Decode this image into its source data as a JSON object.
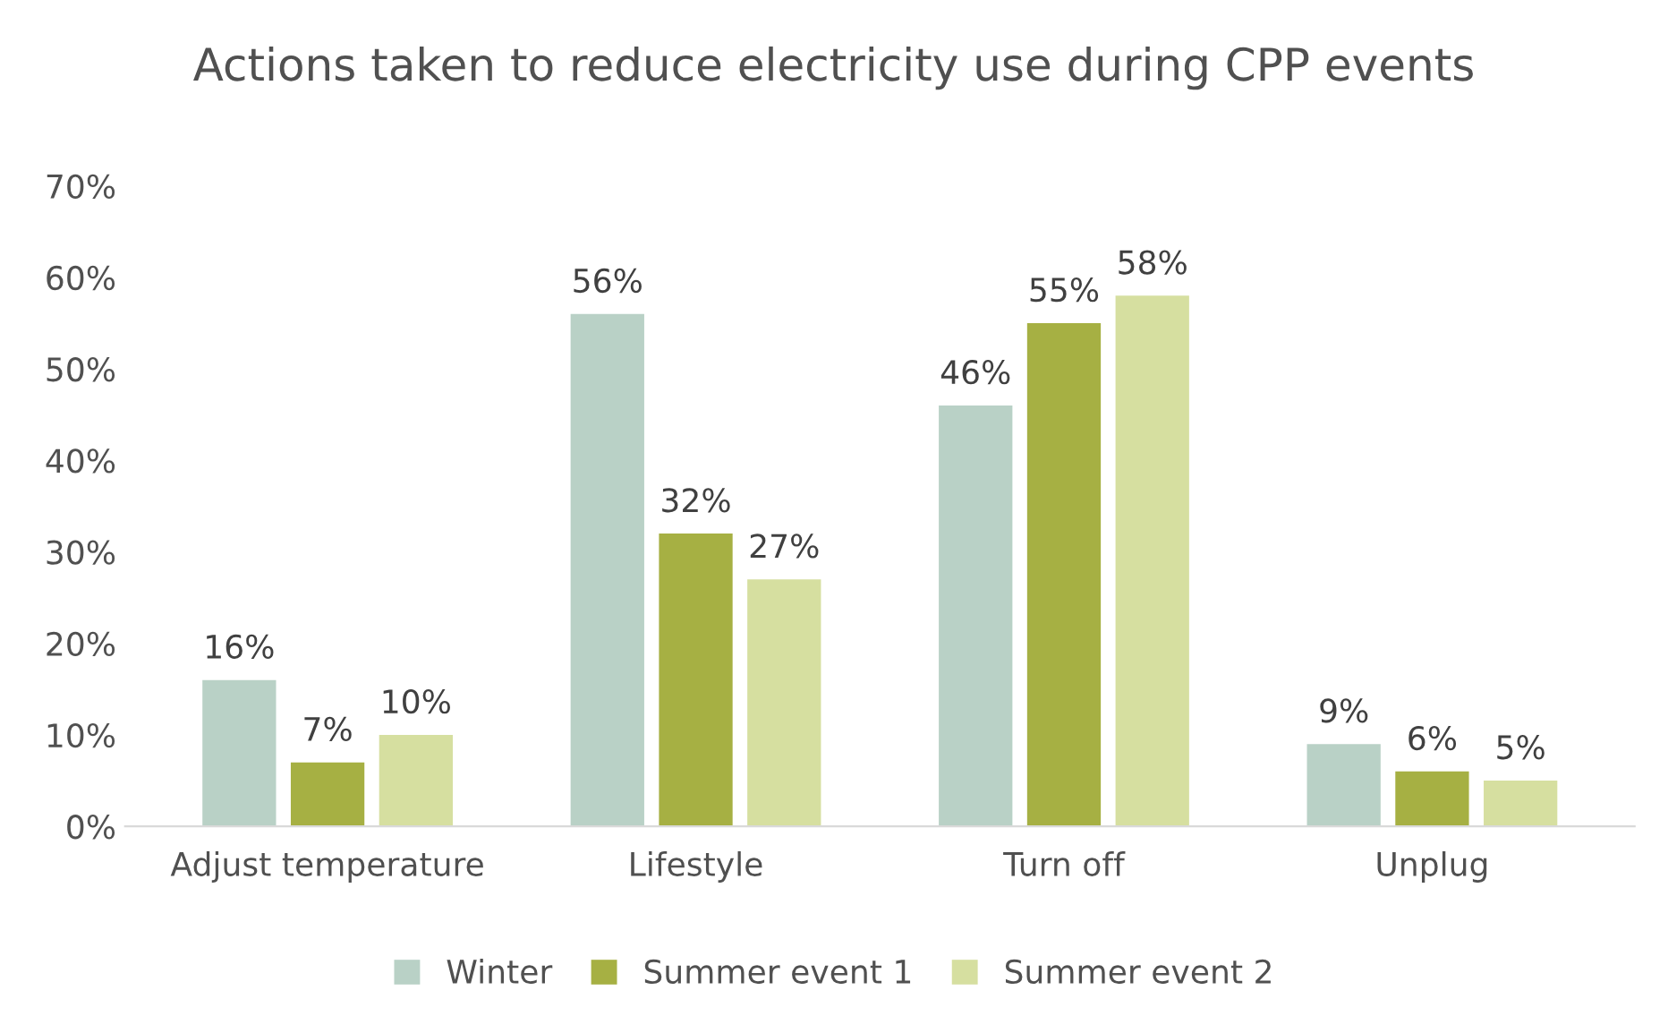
{
  "chart_data": {
    "type": "bar",
    "title": "Actions taken to reduce electricity use during CPP events",
    "categories": [
      "Adjust temperature",
      "Lifestyle",
      "Turn off",
      "Unplug"
    ],
    "series": [
      {
        "name": "Winter",
        "color": "#b9d1c6",
        "values": [
          16,
          56,
          46,
          9
        ],
        "value_labels": [
          "16%",
          "56%",
          "46%",
          "9%"
        ]
      },
      {
        "name": "Summer event 1",
        "color": "#a6b043",
        "values": [
          7,
          32,
          55,
          6
        ],
        "value_labels": [
          "7%",
          "32%",
          "55%",
          "6%"
        ]
      },
      {
        "name": "Summer event 2",
        "color": "#d6dfa0",
        "values": [
          10,
          27,
          58,
          5
        ],
        "value_labels": [
          "10%",
          "27%",
          "58%",
          "5%"
        ]
      }
    ],
    "ylim": [
      0,
      70
    ],
    "yticks": [
      {
        "value": 0,
        "label": "0%"
      },
      {
        "value": 10,
        "label": "10%"
      },
      {
        "value": 20,
        "label": "20%"
      },
      {
        "value": 30,
        "label": "30%"
      },
      {
        "value": 40,
        "label": "40%"
      },
      {
        "value": 50,
        "label": "50%"
      },
      {
        "value": 60,
        "label": "60%"
      },
      {
        "value": 70,
        "label": "70%"
      }
    ],
    "grid": false,
    "legend": "bottom"
  }
}
